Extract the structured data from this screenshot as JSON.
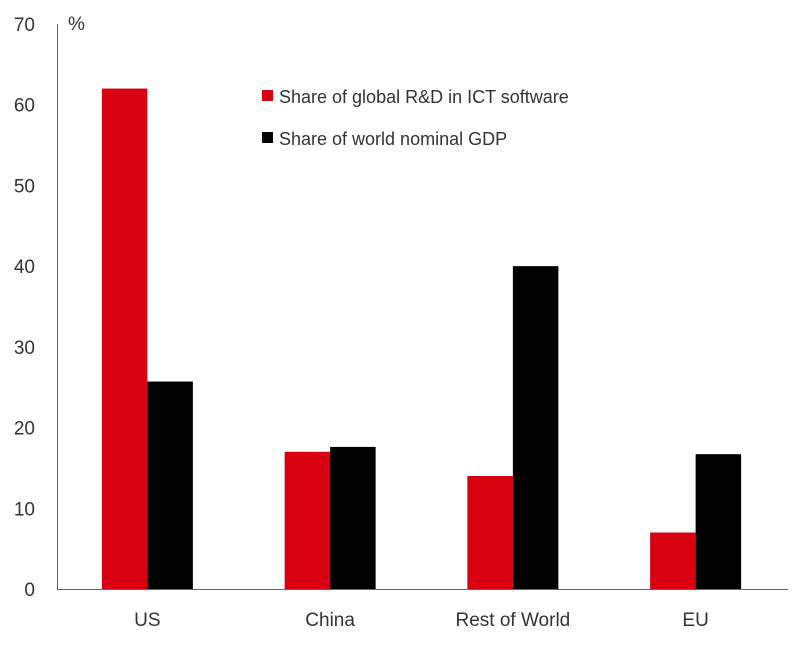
{
  "chart_data": {
    "type": "bar",
    "title": "",
    "xlabel": "",
    "ylabel": "%",
    "ylim": [
      0,
      70
    ],
    "yticks": [
      0,
      10,
      20,
      30,
      40,
      50,
      60,
      70
    ],
    "grid": false,
    "legend_placement": "top-center",
    "categories": [
      "US",
      "China",
      "Rest of World",
      "EU"
    ],
    "series": [
      {
        "name": "Share of global R&D in ICT software",
        "color": "#d90012",
        "values": [
          62,
          17,
          14,
          7
        ]
      },
      {
        "name": "Share of world nominal GDP",
        "color": "#000000",
        "values": [
          25.7,
          17.6,
          40,
          16.7
        ]
      }
    ]
  }
}
